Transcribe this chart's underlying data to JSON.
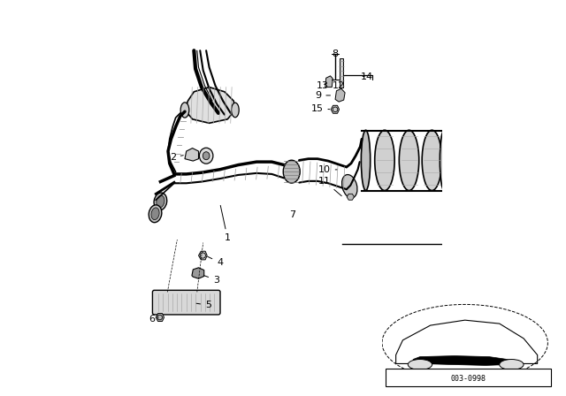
{
  "bg_color": "#ffffff",
  "line_color": "#000000",
  "part_number_box": "003-0998",
  "fig_width": 6.4,
  "fig_height": 4.48,
  "dpi": 100
}
